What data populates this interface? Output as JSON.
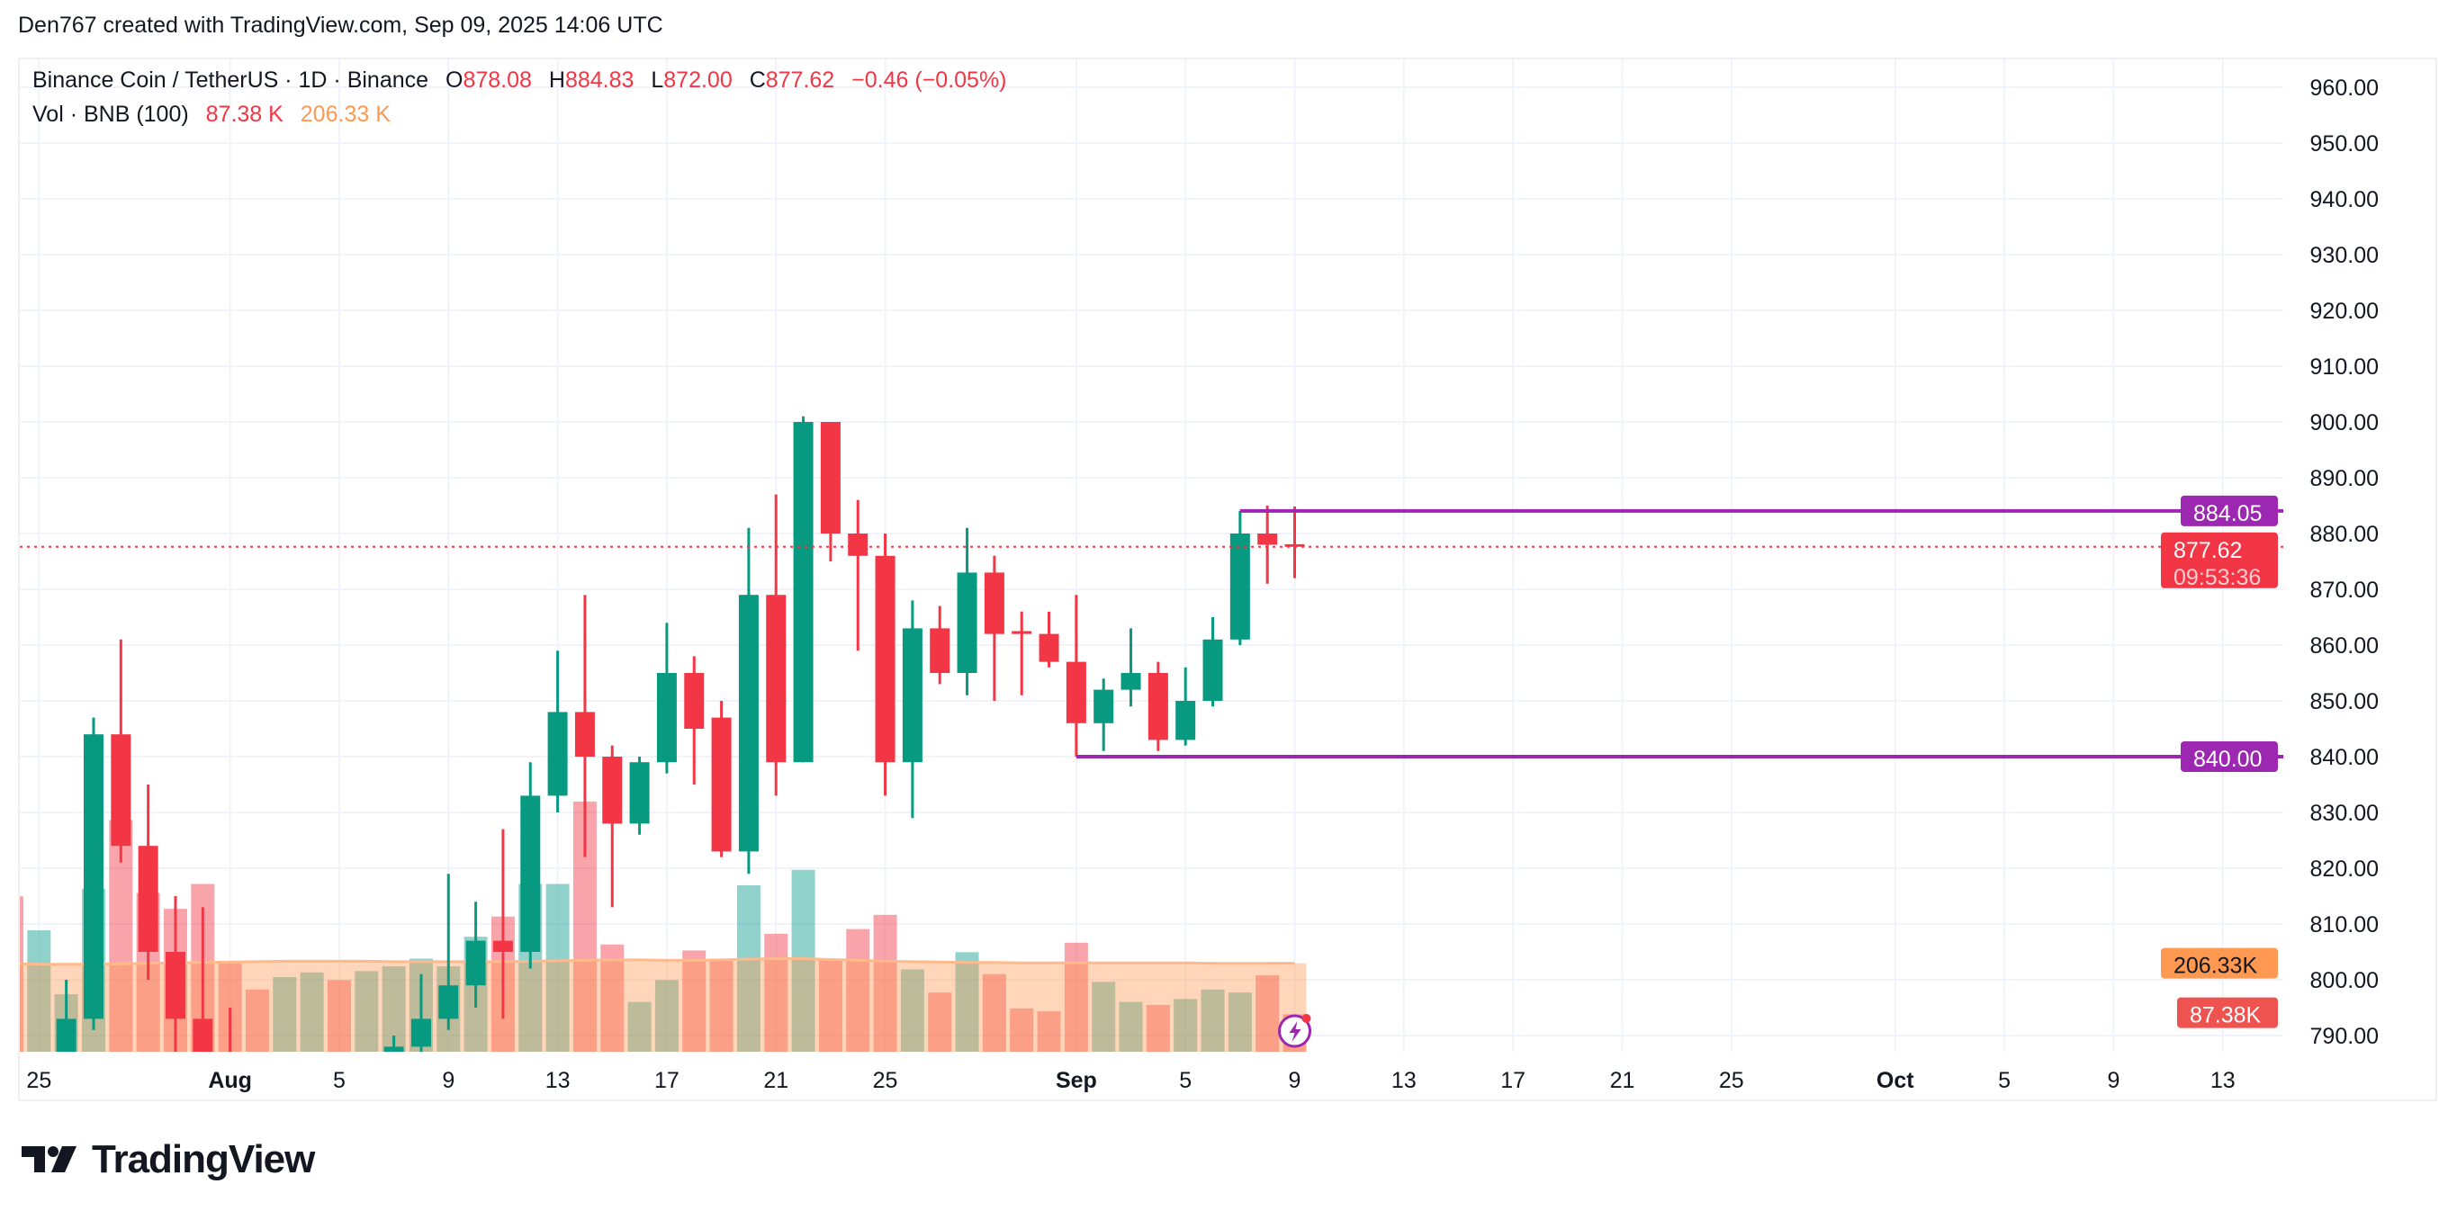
{
  "credit": "Den767 created with TradingView.com, Sep 09, 2025 14:06 UTC",
  "legend": {
    "symbol": "Binance Coin / TetherUS · 1D · Binance",
    "o_label": "O",
    "o": "878.08",
    "h_label": "H",
    "h": "884.83",
    "l_label": "L",
    "l": "872.00",
    "c_label": "C",
    "c": "877.62",
    "change": "−0.46 (−0.05%)",
    "vol_title": "Vol · BNB (100)",
    "vol": "87.38 K",
    "vol_ma": "206.33 K"
  },
  "logo_text": "TradingView",
  "chart_data": {
    "type": "candlestick",
    "title": "Binance Coin / TetherUS · 1D · Binance",
    "first_date": "2025-07-24",
    "ylim": [
      787,
      965
    ],
    "y_ticks": [
      "960.00",
      "950.00",
      "940.00",
      "930.00",
      "920.00",
      "910.00",
      "900.00",
      "890.00",
      "880.00",
      "870.00",
      "860.00",
      "850.00",
      "840.00",
      "830.00",
      "820.00",
      "810.00",
      "800.00",
      "790.00"
    ],
    "x_ticks": [
      {
        "label": "25",
        "day": 1,
        "bold": false
      },
      {
        "label": "Aug",
        "day": 8,
        "bold": true
      },
      {
        "label": "5",
        "day": 12,
        "bold": false
      },
      {
        "label": "9",
        "day": 16,
        "bold": false
      },
      {
        "label": "13",
        "day": 20,
        "bold": false
      },
      {
        "label": "17",
        "day": 24,
        "bold": false
      },
      {
        "label": "21",
        "day": 28,
        "bold": false
      },
      {
        "label": "25",
        "day": 32,
        "bold": false
      },
      {
        "label": "Sep",
        "day": 39,
        "bold": true
      },
      {
        "label": "5",
        "day": 43,
        "bold": false
      },
      {
        "label": "9",
        "day": 47,
        "bold": false
      },
      {
        "label": "13",
        "day": 51,
        "bold": false
      },
      {
        "label": "17",
        "day": 55,
        "bold": false
      },
      {
        "label": "21",
        "day": 59,
        "bold": false
      },
      {
        "label": "25",
        "day": 63,
        "bold": false
      },
      {
        "label": "Oct",
        "day": 69,
        "bold": true
      },
      {
        "label": "5",
        "day": 73,
        "bold": false
      },
      {
        "label": "9",
        "day": 77,
        "bold": false
      },
      {
        "label": "13",
        "day": 81,
        "bold": false
      }
    ],
    "candles": [
      [
        782,
        786,
        770,
        772,
        362
      ],
      [
        772,
        782,
        768,
        779,
        283
      ],
      [
        785,
        800,
        782,
        793,
        134
      ],
      [
        793,
        847,
        791,
        844,
        380
      ],
      [
        844,
        861,
        821,
        824,
        540
      ],
      [
        824,
        835,
        800,
        805,
        370
      ],
      [
        805,
        815,
        787,
        793,
        333
      ],
      [
        793,
        813,
        785,
        786,
        391
      ],
      [
        786,
        795,
        778,
        780,
        206
      ],
      [
        780,
        784,
        770,
        774,
        145
      ],
      [
        774,
        782,
        770,
        779,
        174
      ],
      [
        779,
        786,
        775,
        783,
        185
      ],
      [
        783,
        786,
        774,
        777,
        167
      ],
      [
        777,
        784,
        772,
        782,
        188
      ],
      [
        782,
        790,
        780,
        788,
        199
      ],
      [
        788,
        801,
        785,
        793,
        217
      ],
      [
        793,
        819,
        791,
        799,
        199
      ],
      [
        799,
        814,
        795,
        807,
        268
      ],
      [
        807,
        827,
        793,
        805,
        315
      ],
      [
        805,
        839,
        802,
        833,
        391
      ],
      [
        833,
        859,
        830,
        848,
        391
      ],
      [
        848,
        869,
        822,
        840,
        583
      ],
      [
        840,
        842,
        813,
        828,
        250
      ],
      [
        828,
        840,
        826,
        839,
        116
      ],
      [
        839,
        864,
        837,
        855,
        167
      ],
      [
        855,
        858,
        835,
        845,
        236
      ],
      [
        847,
        850,
        822,
        823,
        214
      ],
      [
        823,
        881,
        819,
        869,
        388
      ],
      [
        869,
        887,
        833,
        839,
        275
      ],
      [
        839,
        901,
        839,
        900,
        424
      ],
      [
        900,
        900,
        875,
        880,
        214
      ],
      [
        880,
        886,
        859,
        876,
        286
      ],
      [
        876,
        880,
        833,
        839,
        319
      ],
      [
        839,
        868,
        829,
        863,
        192
      ],
      [
        863,
        867,
        853,
        855,
        138
      ],
      [
        855,
        881,
        851,
        873,
        232
      ],
      [
        873,
        876,
        850,
        862,
        181
      ],
      [
        862.5,
        866,
        851,
        862,
        101
      ],
      [
        862,
        866,
        856,
        857,
        94
      ],
      [
        857,
        869,
        840,
        846,
        254
      ],
      [
        846,
        854,
        841,
        852,
        163
      ],
      [
        852,
        863,
        849,
        855,
        116
      ],
      [
        855,
        857,
        841,
        843,
        109
      ],
      [
        843,
        856,
        842,
        850,
        123
      ],
      [
        850,
        865,
        849,
        861,
        145
      ],
      [
        861,
        884.05,
        860,
        880,
        138
      ],
      [
        880,
        885,
        871,
        878,
        178
      ],
      [
        878.08,
        884.83,
        872,
        877.62,
        87.38
      ]
    ],
    "volume_ma": [
      205,
      204,
      204,
      204,
      205,
      206,
      207,
      208,
      209,
      210,
      211,
      211,
      211,
      211,
      210,
      210,
      210,
      210,
      210,
      211,
      212,
      213,
      214,
      214,
      213,
      213,
      214,
      216,
      217,
      217,
      215,
      213,
      211,
      210,
      209,
      208,
      208,
      207,
      207,
      207,
      207,
      207,
      207,
      207,
      206,
      206,
      206,
      206.33
    ],
    "horizontal_lines": [
      {
        "price": 884.05,
        "label": "884.05",
        "from_day": 45
      },
      {
        "price": 840.0,
        "label": "840.00",
        "from_day": 39
      }
    ],
    "last_price": {
      "label": "877.62",
      "countdown": "09:53:36",
      "price": 877.62
    },
    "volume_labels": {
      "ma": "206.33K",
      "ma_value": 206.33,
      "vol": "87.38K",
      "vol_value": 87.38
    },
    "colors": {
      "up": "#089981",
      "down": "#f23645",
      "line": "#9c27b0",
      "ma": "#ff9850"
    }
  }
}
